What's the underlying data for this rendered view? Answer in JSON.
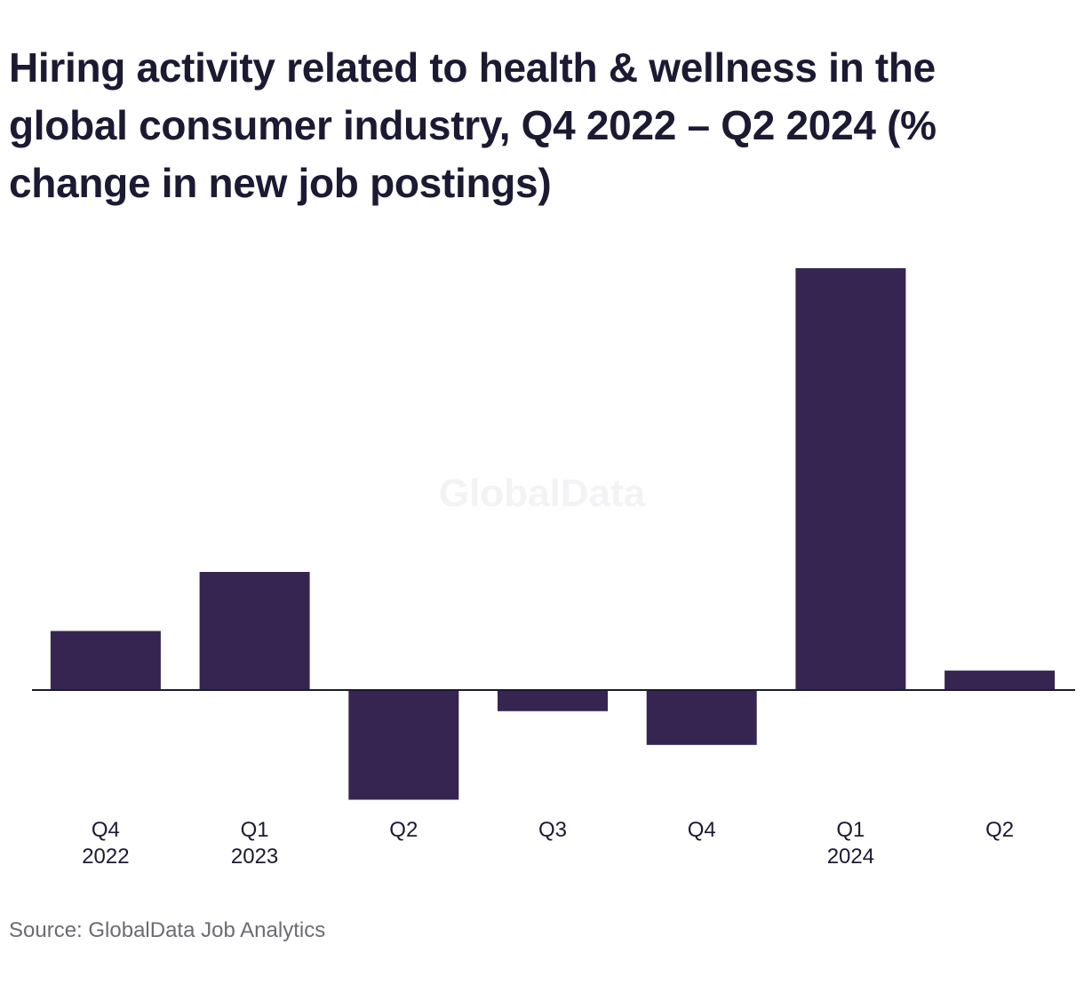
{
  "title": "Hiring activity related to health & wellness in the global consumer industry, Q4 2022 – Q2 2024 (% change in new job postings)",
  "source": "Source: GlobalData Job Analytics",
  "watermark": "GlobalData",
  "colors": {
    "bar": "#362551",
    "axis": "#1c1a33",
    "text": "#1c1a33",
    "source": "#6b6b73",
    "watermark": "#f3f3f5"
  },
  "chart_data": {
    "type": "bar",
    "title": "Hiring activity related to health & wellness in the global consumer industry, Q4 2022 – Q2 2024 (% change in new job postings)",
    "xlabel": "",
    "ylabel": "",
    "categories": [
      {
        "quarter": "Q4",
        "year": "2022"
      },
      {
        "quarter": "Q1",
        "year": "2023"
      },
      {
        "quarter": "Q2",
        "year": ""
      },
      {
        "quarter": "Q3",
        "year": ""
      },
      {
        "quarter": "Q4",
        "year": ""
      },
      {
        "quarter": "Q1",
        "year": "2024"
      },
      {
        "quarter": "Q2",
        "year": ""
      }
    ],
    "values": [
      14,
      28,
      -26,
      -5,
      -13,
      100,
      4.6
    ],
    "ylim": [
      -30,
      100
    ],
    "grid": false,
    "legend": "none",
    "baseline": 0
  }
}
